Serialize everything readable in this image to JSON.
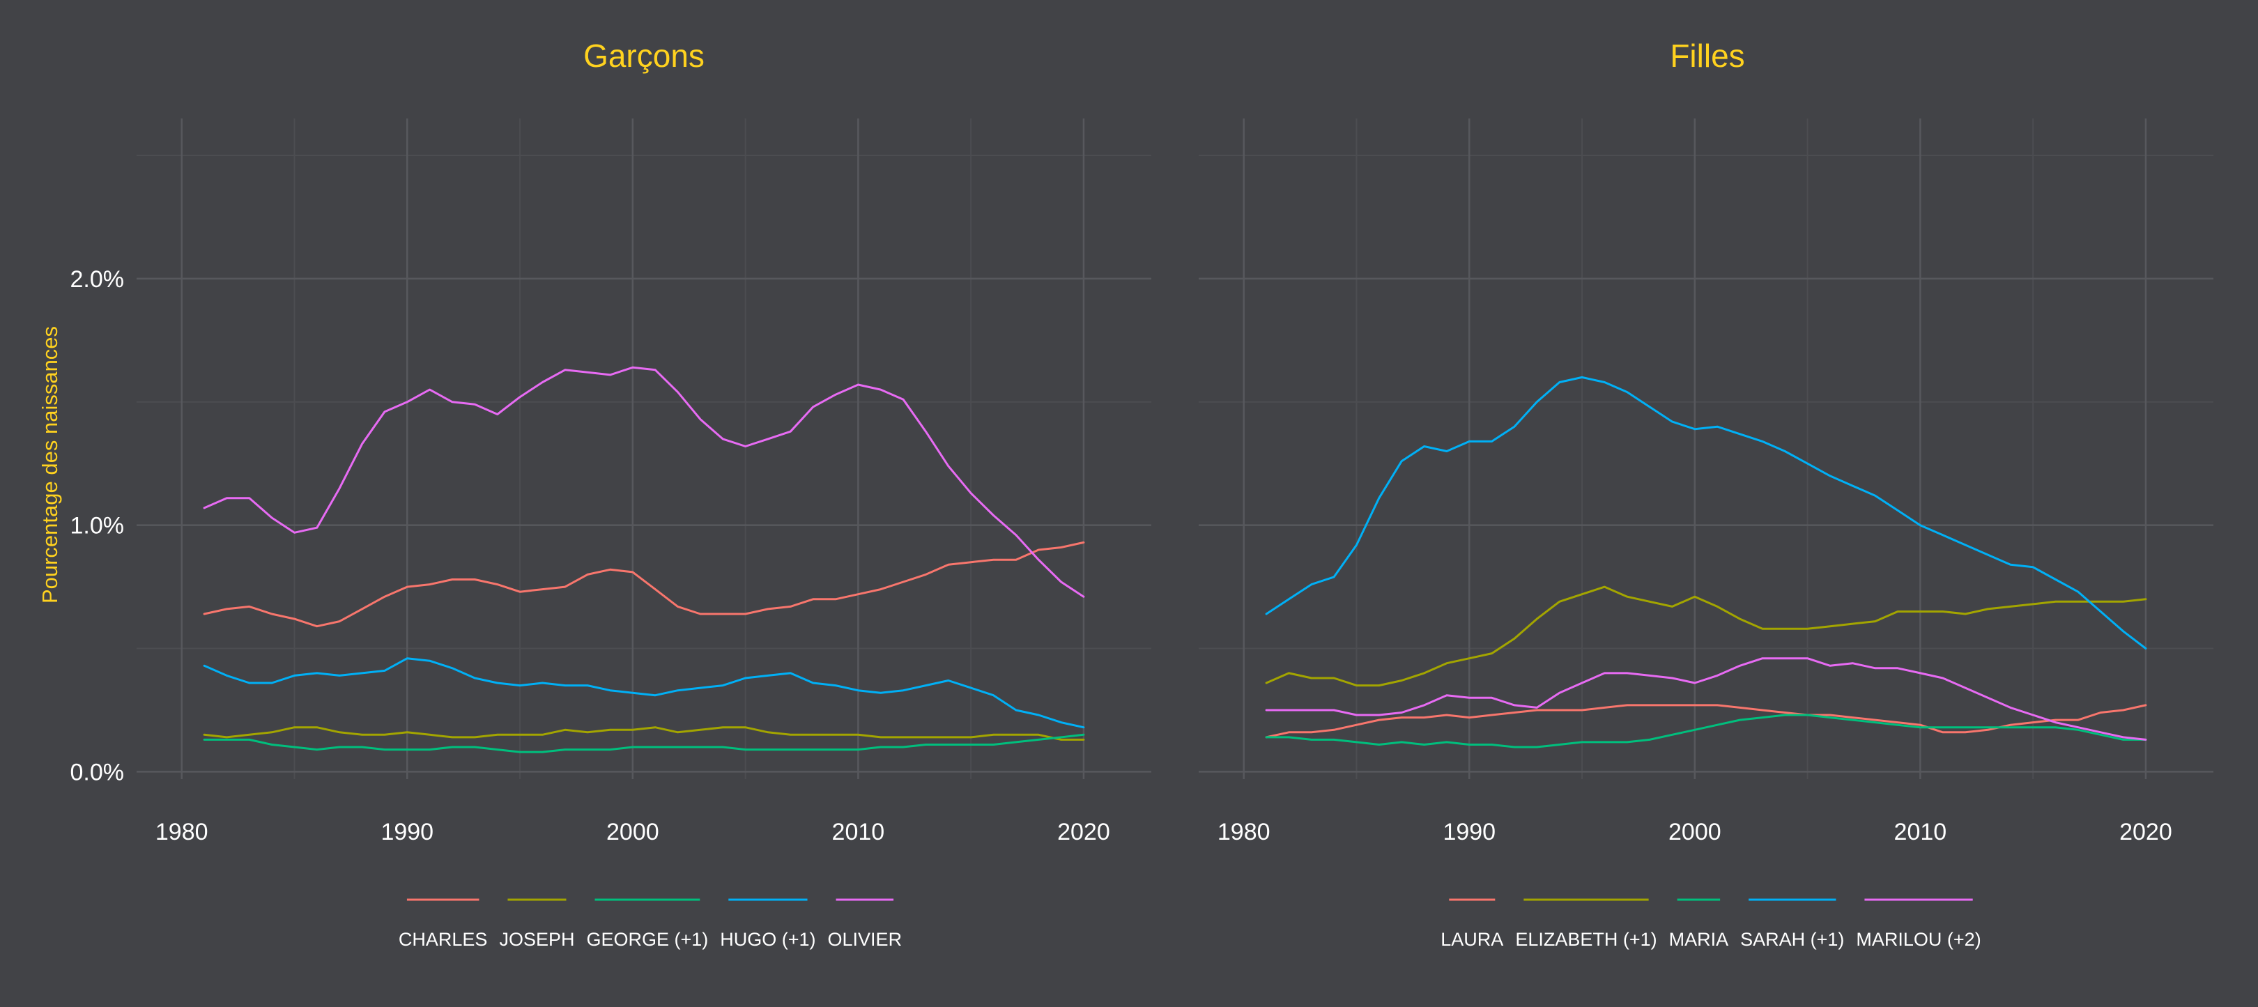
{
  "style": {
    "background": "#424347",
    "title_color": "#FFD21F",
    "ylabel_color": "#FFD21F",
    "tick_color": "#FFFFFF",
    "legend_text_color": "#FFFFFF",
    "grid_major": "#57585D",
    "grid_minor": "#4C4D51"
  },
  "ylabel": "Pourcentage des naissances",
  "chart_data": [
    {
      "type": "line",
      "title": "Garçons",
      "xlim": [
        1978,
        2023
      ],
      "ylim": [
        -0.0003,
        0.0265
      ],
      "xticks": [
        1980,
        1990,
        2000,
        2010,
        2020
      ],
      "xtick_labels": [
        "1980",
        "1990",
        "2000",
        "2010",
        "2020"
      ],
      "yticks": [
        0,
        0.01,
        0.02
      ],
      "ytick_labels": [
        "0.0%",
        "1.0%",
        "2.0%"
      ],
      "x": [
        1981,
        1982,
        1983,
        1984,
        1985,
        1986,
        1987,
        1988,
        1989,
        1990,
        1991,
        1992,
        1993,
        1994,
        1995,
        1996,
        1997,
        1998,
        1999,
        2000,
        2001,
        2002,
        2003,
        2004,
        2005,
        2006,
        2007,
        2008,
        2009,
        2010,
        2011,
        2012,
        2013,
        2014,
        2015,
        2016,
        2017,
        2018,
        2019,
        2020
      ],
      "legend_position": "bottom",
      "series": [
        {
          "name": "CHARLES",
          "color": "#F8766D",
          "values": [
            0.0064,
            0.0066,
            0.0067,
            0.0064,
            0.0062,
            0.0059,
            0.0061,
            0.0066,
            0.0071,
            0.0075,
            0.0076,
            0.0078,
            0.0078,
            0.0076,
            0.0073,
            0.0074,
            0.0075,
            0.008,
            0.0082,
            0.0081,
            0.0074,
            0.0067,
            0.0064,
            0.0064,
            0.0064,
            0.0066,
            0.0067,
            0.007,
            0.007,
            0.0072,
            0.0074,
            0.0077,
            0.008,
            0.0084,
            0.0085,
            0.0086,
            0.0086,
            0.009,
            0.0091,
            0.0093
          ]
        },
        {
          "name": "JOSEPH",
          "color": "#A3A500",
          "values": [
            0.0015,
            0.0014,
            0.0015,
            0.0016,
            0.0018,
            0.0018,
            0.0016,
            0.0015,
            0.0015,
            0.0016,
            0.0015,
            0.0014,
            0.0014,
            0.0015,
            0.0015,
            0.0015,
            0.0017,
            0.0016,
            0.0017,
            0.0017,
            0.0018,
            0.0016,
            0.0017,
            0.0018,
            0.0018,
            0.0016,
            0.0015,
            0.0015,
            0.0015,
            0.0015,
            0.0014,
            0.0014,
            0.0014,
            0.0014,
            0.0014,
            0.0015,
            0.0015,
            0.0015,
            0.0013,
            0.0013
          ]
        },
        {
          "name": "GEORGE (+1)",
          "color": "#00BF7D",
          "values": [
            0.0013,
            0.0013,
            0.0013,
            0.0011,
            0.001,
            0.0009,
            0.001,
            0.001,
            0.0009,
            0.0009,
            0.0009,
            0.001,
            0.001,
            0.0009,
            0.0008,
            0.0008,
            0.0009,
            0.0009,
            0.0009,
            0.001,
            0.001,
            0.001,
            0.001,
            0.001,
            0.0009,
            0.0009,
            0.0009,
            0.0009,
            0.0009,
            0.0009,
            0.001,
            0.001,
            0.0011,
            0.0011,
            0.0011,
            0.0011,
            0.0012,
            0.0013,
            0.0014,
            0.0015
          ]
        },
        {
          "name": "HUGO (+1)",
          "color": "#00B0F6",
          "values": [
            0.0043,
            0.0039,
            0.0036,
            0.0036,
            0.0039,
            0.004,
            0.0039,
            0.004,
            0.0041,
            0.0046,
            0.0045,
            0.0042,
            0.0038,
            0.0036,
            0.0035,
            0.0036,
            0.0035,
            0.0035,
            0.0033,
            0.0032,
            0.0031,
            0.0033,
            0.0034,
            0.0035,
            0.0038,
            0.0039,
            0.004,
            0.0036,
            0.0035,
            0.0033,
            0.0032,
            0.0033,
            0.0035,
            0.0037,
            0.0034,
            0.0031,
            0.0025,
            0.0023,
            0.002,
            0.0018
          ]
        },
        {
          "name": "OLIVIER",
          "color": "#E76BF3",
          "values": [
            0.0107,
            0.0111,
            0.0111,
            0.0103,
            0.0097,
            0.0099,
            0.0115,
            0.0133,
            0.0146,
            0.015,
            0.0155,
            0.015,
            0.0149,
            0.0145,
            0.0152,
            0.0158,
            0.0163,
            0.0162,
            0.0161,
            0.0164,
            0.0163,
            0.0154,
            0.0143,
            0.0135,
            0.0132,
            0.0135,
            0.0138,
            0.0148,
            0.0153,
            0.0157,
            0.0155,
            0.0151,
            0.0138,
            0.0124,
            0.0113,
            0.0104,
            0.0096,
            0.0086,
            0.0077,
            0.0071
          ]
        }
      ]
    },
    {
      "type": "line",
      "title": "Filles",
      "xlim": [
        1978,
        2023
      ],
      "ylim": [
        -0.0003,
        0.0265
      ],
      "xticks": [
        1980,
        1990,
        2000,
        2010,
        2020
      ],
      "xtick_labels": [
        "1980",
        "1990",
        "2000",
        "2010",
        "2020"
      ],
      "yticks": [
        0,
        0.01,
        0.02
      ],
      "x": [
        1981,
        1982,
        1983,
        1984,
        1985,
        1986,
        1987,
        1988,
        1989,
        1990,
        1991,
        1992,
        1993,
        1994,
        1995,
        1996,
        1997,
        1998,
        1999,
        2000,
        2001,
        2002,
        2003,
        2004,
        2005,
        2006,
        2007,
        2008,
        2009,
        2010,
        2011,
        2012,
        2013,
        2014,
        2015,
        2016,
        2017,
        2018,
        2019,
        2020
      ],
      "legend_position": "bottom",
      "series": [
        {
          "name": "LAURA",
          "color": "#F8766D",
          "values": [
            0.0014,
            0.0016,
            0.0016,
            0.0017,
            0.0019,
            0.0021,
            0.0022,
            0.0022,
            0.0023,
            0.0022,
            0.0023,
            0.0024,
            0.0025,
            0.0025,
            0.0025,
            0.0026,
            0.0027,
            0.0027,
            0.0027,
            0.0027,
            0.0027,
            0.0026,
            0.0025,
            0.0024,
            0.0023,
            0.0023,
            0.0022,
            0.0021,
            0.002,
            0.0019,
            0.0016,
            0.0016,
            0.0017,
            0.0019,
            0.002,
            0.0021,
            0.0021,
            0.0024,
            0.0025,
            0.0027
          ]
        },
        {
          "name": "ELIZABETH (+1)",
          "color": "#A3A500",
          "values": [
            0.0036,
            0.004,
            0.0038,
            0.0038,
            0.0035,
            0.0035,
            0.0037,
            0.004,
            0.0044,
            0.0046,
            0.0048,
            0.0054,
            0.0062,
            0.0069,
            0.0072,
            0.0075,
            0.0071,
            0.0069,
            0.0067,
            0.0071,
            0.0067,
            0.0062,
            0.0058,
            0.0058,
            0.0058,
            0.0059,
            0.006,
            0.0061,
            0.0065,
            0.0065,
            0.0065,
            0.0064,
            0.0066,
            0.0067,
            0.0068,
            0.0069,
            0.0069,
            0.0069,
            0.0069,
            0.007
          ]
        },
        {
          "name": "MARIA",
          "color": "#00BF7D",
          "values": [
            0.0014,
            0.0014,
            0.0013,
            0.0013,
            0.0012,
            0.0011,
            0.0012,
            0.0011,
            0.0012,
            0.0011,
            0.0011,
            0.001,
            0.001,
            0.0011,
            0.0012,
            0.0012,
            0.0012,
            0.0013,
            0.0015,
            0.0017,
            0.0019,
            0.0021,
            0.0022,
            0.0023,
            0.0023,
            0.0022,
            0.0021,
            0.002,
            0.0019,
            0.0018,
            0.0018,
            0.0018,
            0.0018,
            0.0018,
            0.0018,
            0.0018,
            0.0017,
            0.0015,
            0.0013,
            0.0013
          ]
        },
        {
          "name": "SARAH (+1)",
          "color": "#00B0F6",
          "values": [
            0.0064,
            0.007,
            0.0076,
            0.0079,
            0.0092,
            0.0111,
            0.0126,
            0.0132,
            0.013,
            0.0134,
            0.0134,
            0.014,
            0.015,
            0.0158,
            0.016,
            0.0158,
            0.0154,
            0.0148,
            0.0142,
            0.0139,
            0.014,
            0.0137,
            0.0134,
            0.013,
            0.0125,
            0.012,
            0.0116,
            0.0112,
            0.0106,
            0.01,
            0.0096,
            0.0092,
            0.0088,
            0.0084,
            0.0083,
            0.0078,
            0.0073,
            0.0065,
            0.0057,
            0.005
          ]
        },
        {
          "name": "MARILOU (+2)",
          "color": "#E76BF3",
          "values": [
            0.0025,
            0.0025,
            0.0025,
            0.0025,
            0.0023,
            0.0023,
            0.0024,
            0.0027,
            0.0031,
            0.003,
            0.003,
            0.0027,
            0.0026,
            0.0032,
            0.0036,
            0.004,
            0.004,
            0.0039,
            0.0038,
            0.0036,
            0.0039,
            0.0043,
            0.0046,
            0.0046,
            0.0046,
            0.0043,
            0.0044,
            0.0042,
            0.0042,
            0.004,
            0.0038,
            0.0034,
            0.003,
            0.0026,
            0.0023,
            0.002,
            0.0018,
            0.0016,
            0.0014,
            0.0013
          ]
        }
      ]
    }
  ]
}
